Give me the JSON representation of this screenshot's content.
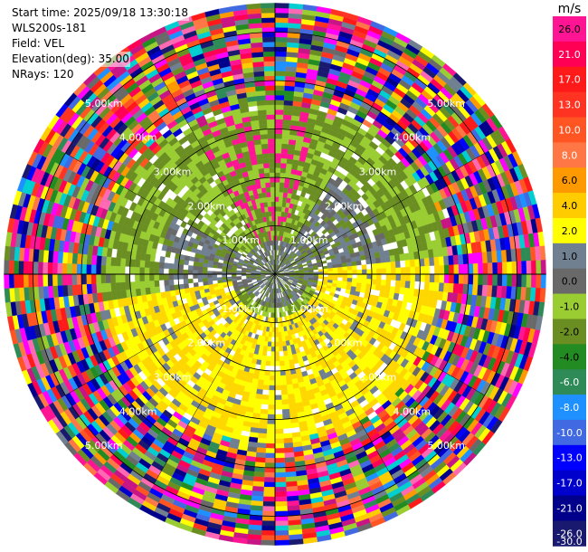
{
  "info": {
    "start_time": "Start time: 2025/09/18 13:30:18",
    "instrument": "WLS200s-181",
    "field": "Field: VEL",
    "elevation": "Elevation(deg): 35.00",
    "nrays": "NRays: 120"
  },
  "chart_data": {
    "type": "ppi",
    "field": "VEL",
    "units": "m/s",
    "n_rays": 120,
    "elevation_deg": 35.0,
    "max_range_km": 5.6,
    "range_rings_km": [
      1,
      2,
      3,
      4,
      5
    ],
    "ring_labels": [
      "1.00km",
      "2.00km",
      "3.00km",
      "4.00km",
      "5.00km"
    ],
    "colorbar": {
      "title": "m/s",
      "ticks": [
        "26.0",
        "21.0",
        "17.0",
        "13.0",
        "10.0",
        "8.0",
        "6.0",
        "4.0",
        "2.0",
        "1.0",
        "0.0",
        "-1.0",
        "-2.0",
        "-4.0",
        "-6.0",
        "-8.0",
        "-10.0",
        "-13.0",
        "-17.0",
        "-21.0",
        "-26.0",
        "-30.0"
      ],
      "colors": [
        "#ff1493",
        "#ff0055",
        "#ff1a1a",
        "#ff3322",
        "#ff5522",
        "#ff7744",
        "#ff9900",
        "#ffcc00",
        "#ffff00",
        "#708090",
        "#696969",
        "#9acd32",
        "#6b8e23",
        "#228b22",
        "#2e8b57",
        "#1e90ff",
        "#4169e1",
        "#0000ff",
        "#0000cd",
        "#00008b",
        "#191970"
      ],
      "vmin": -30.0,
      "vmax": 30.0
    },
    "signal_range_km": 3.6,
    "pattern": "near-range: green (-1 to -2 m/s) to north/west, yellow (2-4 m/s) to south/east, gray near 0 m/s; beyond ~3.6 km random noise across full scale"
  }
}
